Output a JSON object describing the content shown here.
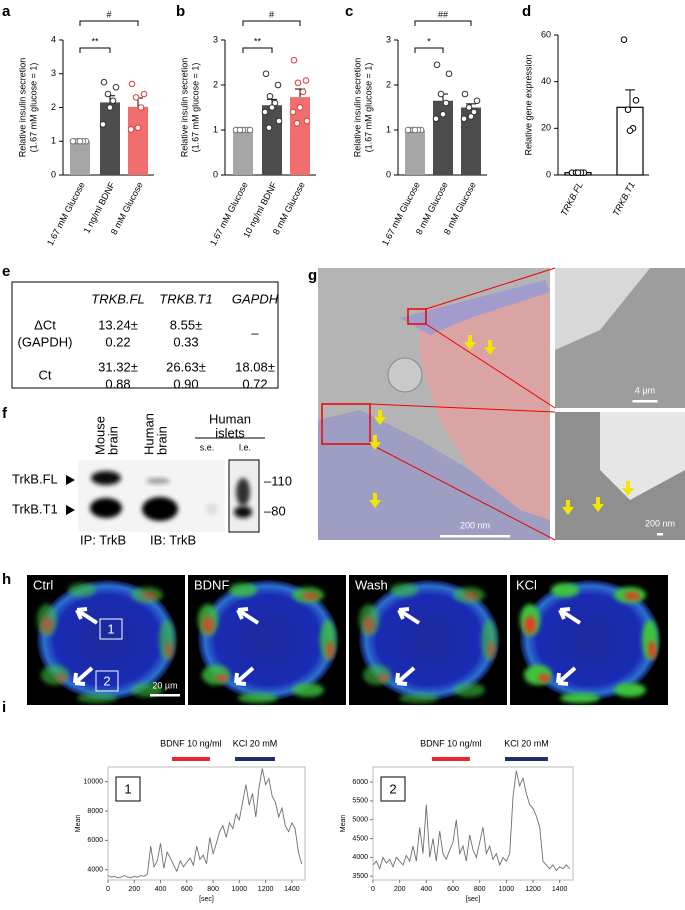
{
  "chart_data": [
    {
      "type": "bar",
      "panel": "a",
      "ylabel": [
        "Relative insulin secretion",
        "(1.67 mM glucose = 1)"
      ],
      "categories": [
        "1.67 mM Glucose",
        "1 ng/ml BDNF",
        "8 mM Glucose"
      ],
      "values": [
        1,
        2.15,
        2.02
      ],
      "errors": [
        null,
        0.2,
        0.26
      ],
      "colors": [
        "#a6a6a6",
        "#4d4d4d",
        "#f26d6d"
      ],
      "point_colors": [
        "#777777",
        "#333333",
        "#e03a3a"
      ],
      "points": [
        [
          1,
          1,
          1,
          1,
          1,
          1
        ],
        [
          2.75,
          2.6,
          2.4,
          2.2,
          2.0,
          1.5
        ],
        [
          2.7,
          2.4,
          2.3,
          2.0,
          1.4,
          1.35
        ]
      ],
      "ylim": [
        0,
        4
      ],
      "yticks": [
        0,
        1,
        2,
        3,
        4
      ],
      "comparisons": [
        {
          "label": "**",
          "groups": [
            0,
            1
          ]
        },
        {
          "label": "#",
          "groups": [
            0,
            2
          ]
        }
      ]
    },
    {
      "type": "bar",
      "panel": "b",
      "ylabel": [
        "Relative insulin secretion",
        "(1.67 mM glucose = 1)"
      ],
      "categories": [
        "1.67 mM Glucose",
        "10 ng/ml BDNF",
        "8 mM Glucose"
      ],
      "values": [
        1,
        1.55,
        1.73
      ],
      "errors": [
        null,
        0.13,
        0.18
      ],
      "colors": [
        "#a6a6a6",
        "#4d4d4d",
        "#f26d6d"
      ],
      "point_colors": [
        "#777777",
        "#333333",
        "#e03a3a"
      ],
      "points": [
        [
          1,
          1,
          1,
          1,
          1,
          1,
          1,
          1
        ],
        [
          2.25,
          2.0,
          1.75,
          1.6,
          1.5,
          1.4,
          1.2,
          1.05
        ],
        [
          2.55,
          2.1,
          2.05,
          1.85,
          1.5,
          1.4,
          1.2,
          1.15
        ]
      ],
      "ylim": [
        0,
        3
      ],
      "yticks": [
        0,
        1,
        2,
        3
      ],
      "comparisons": [
        {
          "label": "**",
          "groups": [
            0,
            1
          ]
        },
        {
          "label": "#",
          "groups": [
            0,
            2
          ]
        }
      ]
    },
    {
      "type": "bar",
      "panel": "c",
      "ylabel": [
        "Relative insulin secretion",
        "(1.67 mM glucose = 1)"
      ],
      "categories": [
        "1.67 mM Glucose",
        "8 mM Glucose",
        "8 mM Glucose"
      ],
      "values": [
        1,
        1.65,
        1.5
      ],
      "errors": [
        null,
        0.15,
        0.08
      ],
      "colors": [
        "#a6a6a6",
        "#4d4d4d",
        "#4d4d4d"
      ],
      "point_colors": [
        "#777777",
        "#333333",
        "#333333"
      ],
      "points": [
        [
          1,
          1,
          1,
          1,
          1,
          1
        ],
        [
          2.45,
          2.25,
          1.8,
          1.6,
          1.35,
          1.25
        ],
        [
          1.8,
          1.65,
          1.5,
          1.4,
          1.3,
          1.25
        ]
      ],
      "ylim": [
        0,
        3
      ],
      "yticks": [
        0,
        1,
        2,
        3
      ],
      "comparisons": [
        {
          "label": "*",
          "groups": [
            0,
            1
          ]
        },
        {
          "label": "##",
          "groups": [
            0,
            2
          ]
        }
      ]
    },
    {
      "type": "bar",
      "panel": "d",
      "ylabel": [
        "Relative gene expression"
      ],
      "categories": [
        "TRKB.FL",
        "TRKB.T1"
      ],
      "italic_categories": true,
      "values": [
        1,
        29
      ],
      "errors": [
        null,
        7.5
      ],
      "colors": [
        "#ffffff",
        "#ffffff"
      ],
      "edgecolor": "#000000",
      "point_colors": [
        "#000000",
        "#000000"
      ],
      "points": [
        [
          1,
          1,
          1,
          1,
          1
        ],
        [
          58,
          32,
          28,
          20,
          19
        ]
      ],
      "ylim": [
        0,
        60
      ],
      "yticks": [
        0,
        20,
        40,
        60
      ]
    },
    {
      "type": "line",
      "panel": "i",
      "inset_label": "1",
      "xlabel": "[sec]",
      "ylabel": "Mean",
      "x": [
        0,
        25,
        50,
        75,
        100,
        125,
        150,
        175,
        200,
        225,
        250,
        275,
        300,
        325,
        350,
        375,
        400,
        425,
        450,
        475,
        500,
        525,
        550,
        575,
        600,
        625,
        650,
        675,
        700,
        725,
        750,
        775,
        800,
        825,
        850,
        875,
        900,
        925,
        950,
        975,
        1000,
        1025,
        1050,
        1075,
        1100,
        1125,
        1150,
        1175,
        1200,
        1225,
        1250,
        1275,
        1300,
        1325,
        1350,
        1375,
        1400,
        1425,
        1450,
        1475
      ],
      "series": [
        {
          "color": "#6e6e6e",
          "values": [
            3600,
            3500,
            3550,
            3450,
            3500,
            3600,
            3500,
            3450,
            3550,
            3500,
            3600,
            3550,
            3700,
            5600,
            4200,
            4600,
            5800,
            4100,
            5200,
            4800,
            4300,
            3900,
            4600,
            4200,
            4500,
            4800,
            4300,
            5600,
            4700,
            5000,
            4400,
            6200,
            5100,
            5800,
            6600,
            7000,
            6200,
            7200,
            6800,
            7800,
            7400,
            8600,
            9800,
            8400,
            9200,
            7600,
            9600,
            10900,
            9800,
            10200,
            9000,
            8600,
            7600,
            8200,
            7000,
            6600,
            7200,
            6800,
            5200,
            4400
          ]
        }
      ],
      "xlim": [
        0,
        1500
      ],
      "xticks": [
        0,
        200,
        400,
        600,
        800,
        1000,
        1200,
        1400
      ],
      "ylim": [
        3300,
        11000
      ],
      "yticks": [
        4000,
        6000,
        8000,
        10000
      ],
      "annotations": [
        {
          "text": "BDNF 10 ng/ml",
          "color": "#e8262b",
          "span": [
            487,
            776
          ]
        },
        {
          "text": "KCl 20 mM",
          "color": "#1d2f6b",
          "span": [
            967,
            1271
          ]
        }
      ]
    },
    {
      "type": "line",
      "inset_label": "2",
      "xlabel": "[sec]",
      "ylabel": "Mean",
      "x": [
        0,
        25,
        50,
        75,
        100,
        125,
        150,
        175,
        200,
        225,
        250,
        275,
        300,
        325,
        350,
        375,
        400,
        425,
        450,
        475,
        500,
        525,
        550,
        575,
        600,
        625,
        650,
        675,
        700,
        725,
        750,
        775,
        800,
        825,
        850,
        875,
        900,
        925,
        950,
        975,
        1000,
        1025,
        1050,
        1075,
        1100,
        1125,
        1150,
        1175,
        1200,
        1225,
        1250,
        1275,
        1300,
        1325,
        1350,
        1375,
        1400,
        1425,
        1450,
        1475
      ],
      "series": [
        {
          "color": "#6e6e6e",
          "values": [
            3800,
            3900,
            3700,
            4000,
            3850,
            3950,
            3750,
            4000,
            3900,
            3800,
            4050,
            3900,
            4300,
            3900,
            4800,
            4100,
            5400,
            4000,
            4500,
            3900,
            4700,
            4100,
            3950,
            4200,
            4400,
            5000,
            4100,
            4300,
            3900,
            4600,
            4200,
            4000,
            4400,
            4800,
            4100,
            4300,
            3950,
            4100,
            3800,
            4000,
            3900,
            4100,
            5600,
            6300,
            5900,
            6100,
            5700,
            5400,
            5300,
            5100,
            4800,
            3900,
            3800,
            3700,
            3800,
            3650,
            3750,
            3700,
            3800,
            3700
          ]
        }
      ],
      "xlim": [
        0,
        1500
      ],
      "xticks": [
        0,
        200,
        400,
        600,
        800,
        1000,
        1200,
        1400
      ],
      "ylim": [
        3400,
        6400
      ],
      "yticks": [
        3500,
        4000,
        4500,
        5000,
        5500,
        6000
      ],
      "annotations": [
        {
          "text": "BDNF 10 ng/ml",
          "color": "#e8262b",
          "span": [
            442,
            727
          ]
        },
        {
          "text": "KCl 20 mM",
          "color": "#1d2f6b",
          "span": [
            990,
            1312
          ]
        }
      ]
    }
  ],
  "table": {
    "panel": "e",
    "columns": [
      "TRKB.FL",
      "TRKB.T1",
      "GAPDH"
    ],
    "rows": [
      {
        "label": [
          "ΔCt",
          "(GAPDH)"
        ],
        "cells": [
          [
            "13.24±",
            "0.22"
          ],
          [
            "8.55±",
            "0.33"
          ],
          [
            "–"
          ]
        ]
      },
      {
        "label": [
          "Ct"
        ],
        "cells": [
          [
            "31.32±",
            "0.88"
          ],
          [
            "26.63±",
            "0.90"
          ],
          [
            "18.08±",
            "0.72"
          ]
        ]
      }
    ]
  },
  "blot": {
    "panel": "f",
    "lanes": [
      [
        "Mouse",
        "brain"
      ],
      [
        "Human",
        "brain"
      ]
    ],
    "islets": [
      "Human",
      "islets"
    ],
    "exposures": [
      "s.e.",
      "l.e."
    ],
    "bands": [
      "TrkB.FL",
      "TrkB.T1"
    ],
    "markers": [
      "–110",
      "–80"
    ],
    "footer": [
      "IP: TrkB",
      "IB: TrkB"
    ]
  },
  "em": {
    "panel": "g",
    "scale_bars": [
      "200 nm",
      "4 µm",
      "200 nm"
    ]
  },
  "imaging": {
    "panel": "h",
    "conditions": [
      "Ctrl",
      "BDNF",
      "Wash",
      "KCl"
    ],
    "rois": [
      "1",
      "2"
    ],
    "scale_bar": "20 µm"
  }
}
